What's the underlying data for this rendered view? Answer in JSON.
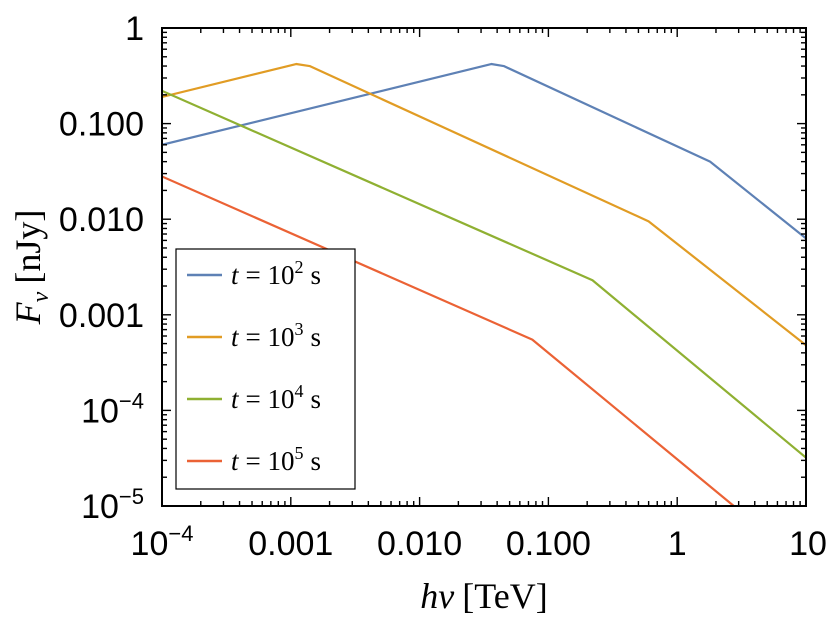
{
  "chart_data": {
    "type": "line",
    "x_scale": "log",
    "y_scale": "log",
    "xlim": [
      0.0001,
      10
    ],
    "ylim": [
      1e-05,
      1
    ],
    "xlabel": {
      "main": "hν",
      "unit": "[TeV]"
    },
    "ylabel": {
      "main": "F",
      "sub": "ν",
      "unit": "[nJy]"
    },
    "x_ticks": [
      {
        "value": 0.0001,
        "base": "10",
        "exp": "−4"
      },
      {
        "value": 0.001,
        "label": "0.001"
      },
      {
        "value": 0.01,
        "label": "0.010"
      },
      {
        "value": 0.1,
        "label": "0.100"
      },
      {
        "value": 1,
        "label": "1"
      },
      {
        "value": 10,
        "label": "10"
      }
    ],
    "y_ticks": [
      {
        "value": 1e-05,
        "base": "10",
        "exp": "−5"
      },
      {
        "value": 0.0001,
        "base": "10",
        "exp": "−4"
      },
      {
        "value": 0.001,
        "label": "0.001"
      },
      {
        "value": 0.01,
        "label": "0.010"
      },
      {
        "value": 0.1,
        "label": "0.100"
      },
      {
        "value": 1,
        "label": "1"
      }
    ],
    "grid": false,
    "legend_placement": "bottom-left",
    "series": [
      {
        "name": "t = 10^2 s",
        "label": {
          "var": "t",
          "eq": "= 10",
          "exp": "2",
          "unit": "s"
        },
        "color": "#5E81B5",
        "points": [
          [
            0.0001,
            0.06
          ],
          [
            0.036,
            0.42
          ],
          [
            0.045,
            0.4
          ],
          [
            1.8,
            0.04
          ],
          [
            10,
            0.0063
          ]
        ]
      },
      {
        "name": "t = 10^3 s",
        "label": {
          "var": "t",
          "eq": "= 10",
          "exp": "3",
          "unit": "s"
        },
        "color": "#E19C24",
        "points": [
          [
            0.0001,
            0.19
          ],
          [
            0.0011,
            0.42
          ],
          [
            0.0014,
            0.4
          ],
          [
            0.6,
            0.0095
          ],
          [
            10,
            0.00048
          ]
        ]
      },
      {
        "name": "t = 10^4 s",
        "label": {
          "var": "t",
          "eq": "= 10",
          "exp": "4",
          "unit": "s"
        },
        "color": "#8FB032",
        "points": [
          [
            0.0001,
            0.22
          ],
          [
            0.22,
            0.0023
          ],
          [
            10,
            3.2e-05
          ]
        ]
      },
      {
        "name": "t = 10^5 s",
        "label": {
          "var": "t",
          "eq": "= 10",
          "exp": "5",
          "unit": "s"
        },
        "color": "#EB6235",
        "points": [
          [
            0.0001,
            0.028
          ],
          [
            0.075,
            0.00055
          ],
          [
            2.75,
            1e-05
          ]
        ]
      }
    ]
  }
}
